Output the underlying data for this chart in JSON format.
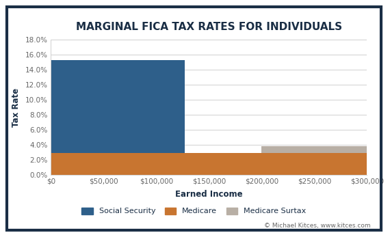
{
  "title": "MARGINAL FICA TAX RATES FOR INDIVIDUALS",
  "xlabel": "Earned Income",
  "ylabel": "Tax Rate",
  "background_outer": "#ffffff",
  "border_color": "#1a2e45",
  "background_inner": "#ffffff",
  "grid_color": "#d0d0d0",
  "title_color": "#1a2e45",
  "axis_label_color": "#666666",
  "tick_label_color": "#666666",
  "social_security_color": "#2e5f8a",
  "medicare_color": "#c87530",
  "medicare_surtax_color": "#b8afa5",
  "legend_labels": [
    "Social Security",
    "Medicare",
    "Medicare Surtax"
  ],
  "ss_rate": 0.124,
  "medicare_rate": 0.029,
  "surtax_rate": 0.009,
  "ss_limit": 127000,
  "surtax_threshold": 200000,
  "x_max": 300000,
  "ylim": [
    0,
    0.18
  ],
  "yticks": [
    0.0,
    0.02,
    0.04,
    0.06,
    0.08,
    0.1,
    0.12,
    0.14,
    0.16,
    0.18
  ],
  "xticks": [
    0,
    50000,
    100000,
    150000,
    200000,
    250000,
    300000
  ],
  "copyright_text": "© Michael Kitces, www.kitces.com",
  "title_fontsize": 11,
  "label_fontsize": 8.5,
  "tick_fontsize": 7.5,
  "legend_fontsize": 8,
  "copyright_fontsize": 6.5
}
